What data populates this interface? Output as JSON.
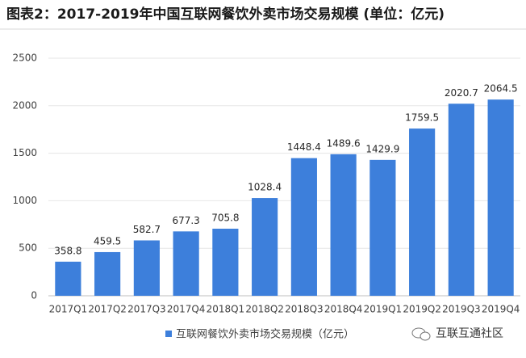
{
  "chart_data": {
    "type": "bar",
    "title": "图表2：2017-2019年中国互联网餐饮外卖市场交易规模 (单位：亿元)",
    "categories": [
      "2017Q1",
      "2017Q2",
      "2017Q3",
      "2017Q4",
      "2018Q1",
      "2018Q2",
      "2018Q3",
      "2018Q4",
      "2019Q1",
      "2019Q2",
      "2019Q3",
      "2019Q4"
    ],
    "series": [
      {
        "name": "互联网餐饮外卖市场交易规模（亿元）",
        "color": "#3d7fdb",
        "values": [
          358.8,
          459.5,
          582.7,
          677.3,
          705.8,
          1028.4,
          1448.4,
          1489.6,
          1429.9,
          1759.5,
          2020.7,
          2064.5
        ]
      }
    ],
    "ylim": [
      0,
      2500
    ],
    "yticks": [
      0,
      500,
      1000,
      1500,
      2000,
      2500
    ],
    "grid": true,
    "legend": "bottom",
    "source": "互联互通社区"
  }
}
